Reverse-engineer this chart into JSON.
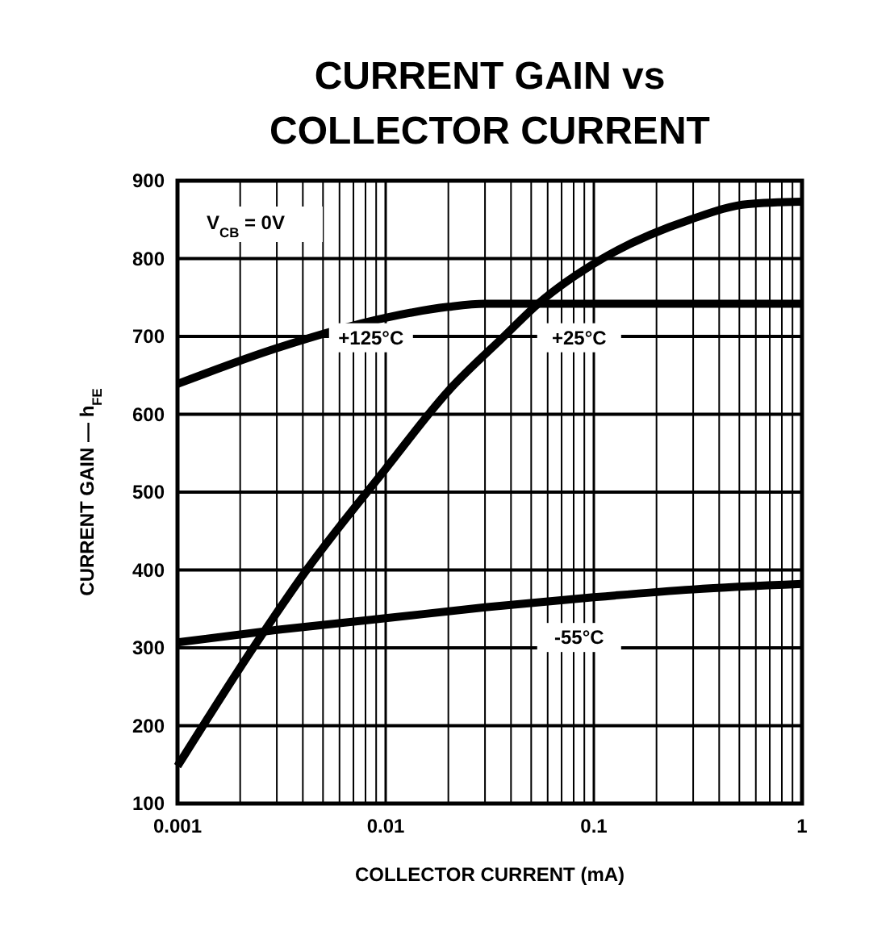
{
  "chart_data": {
    "type": "line",
    "title": "CURRENT GAIN vs\nCOLLECTOR CURRENT",
    "xlabel": "COLLECTOR CURRENT (mA)",
    "ylabel": "CURRENT GAIN — h$_{FE}$",
    "log": "x",
    "grid": true,
    "legend": false,
    "xlim": [
      0.001,
      1
    ],
    "xticks": [
      0.001,
      0.01,
      0.1,
      1
    ],
    "ylim": [
      100,
      900
    ],
    "yticks": [
      100,
      200,
      300,
      400,
      500,
      600,
      700,
      800,
      900
    ],
    "annotations": [
      {
        "text": "V$_{CB}$ = 0V"
      }
    ],
    "series": [
      {
        "name": "+125°C",
        "color": "#000000",
        "x": [
          0.001,
          0.003,
          0.01,
          0.02,
          0.03,
          0.1,
          0.3,
          1
        ],
        "values": [
          639,
          685,
          724,
          738,
          742,
          742,
          742,
          742
        ]
      },
      {
        "name": "+25°C",
        "color": "#000000",
        "x": [
          0.001,
          0.00231,
          0.00417,
          0.01,
          0.02,
          0.037,
          0.054,
          0.11,
          0.29,
          0.55,
          1
        ],
        "values": [
          148,
          300,
          400,
          530,
          630,
          700,
          742,
          800,
          850,
          870,
          873
        ]
      },
      {
        "name": "-55°C",
        "color": "#000000",
        "x": [
          0.001,
          0.003,
          0.01,
          0.03,
          0.1,
          0.3,
          1
        ],
        "values": [
          307,
          323,
          338,
          352,
          365,
          375,
          382
        ]
      }
    ]
  }
}
